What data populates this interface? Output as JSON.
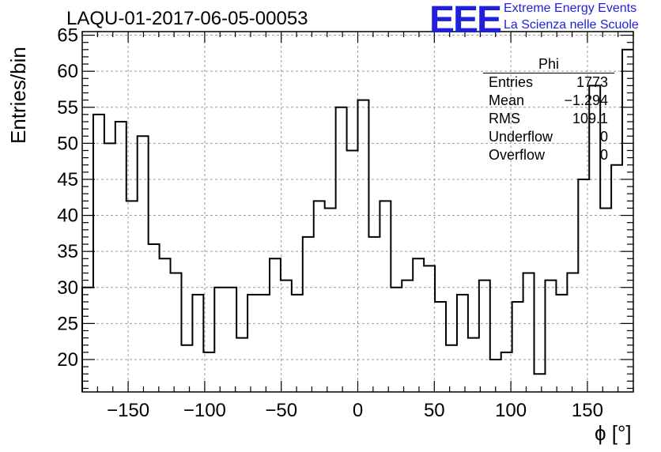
{
  "chart_data": {
    "type": "histogram",
    "title": "LAQU-01-2017-06-05-00053",
    "xlabel": "ϕ [°]",
    "ylabel": "Entries/bin",
    "xlim": [
      -180,
      180
    ],
    "ylim": [
      15.5,
      65.5
    ],
    "grid": true,
    "x_ticks": [
      -150,
      -100,
      -50,
      0,
      50,
      100,
      150
    ],
    "x_tick_labels": [
      "−150",
      "−100",
      "−50",
      "0",
      "50",
      "100",
      "150"
    ],
    "y_ticks": [
      20,
      25,
      30,
      35,
      40,
      45,
      50,
      55,
      60,
      65
    ],
    "y_tick_labels": [
      "20",
      "25",
      "30",
      "35",
      "40",
      "45",
      "50",
      "55",
      "60",
      "65"
    ],
    "bin_width": 7.2,
    "bin_edges_start": -180,
    "values": [
      30,
      54,
      50,
      53,
      42,
      51,
      36,
      34,
      32,
      22,
      29,
      21,
      30,
      30,
      23,
      29,
      29,
      34,
      31,
      29,
      37,
      42,
      41,
      55,
      49,
      56,
      37,
      42,
      30,
      31,
      34,
      33,
      28,
      22,
      29,
      23,
      31,
      20,
      21,
      28,
      32,
      18,
      31,
      29,
      32,
      45,
      58,
      41,
      47,
      63
    ],
    "stats_box": {
      "name": "Phi",
      "rows": [
        {
          "label": "Entries",
          "value": "1773"
        },
        {
          "label": "Mean",
          "value": "−1.294"
        },
        {
          "label": "RMS",
          "value": "109.1"
        },
        {
          "label": "Underflow",
          "value": "0"
        },
        {
          "label": "Overflow",
          "value": "0"
        }
      ]
    }
  },
  "logo": {
    "mark": "EEE",
    "line1": "Extreme Energy Events",
    "line2": "La Scienza nelle Scuole"
  },
  "colors": {
    "line": "#000000",
    "grid": "#999999",
    "logo": "#1f1fdc"
  }
}
